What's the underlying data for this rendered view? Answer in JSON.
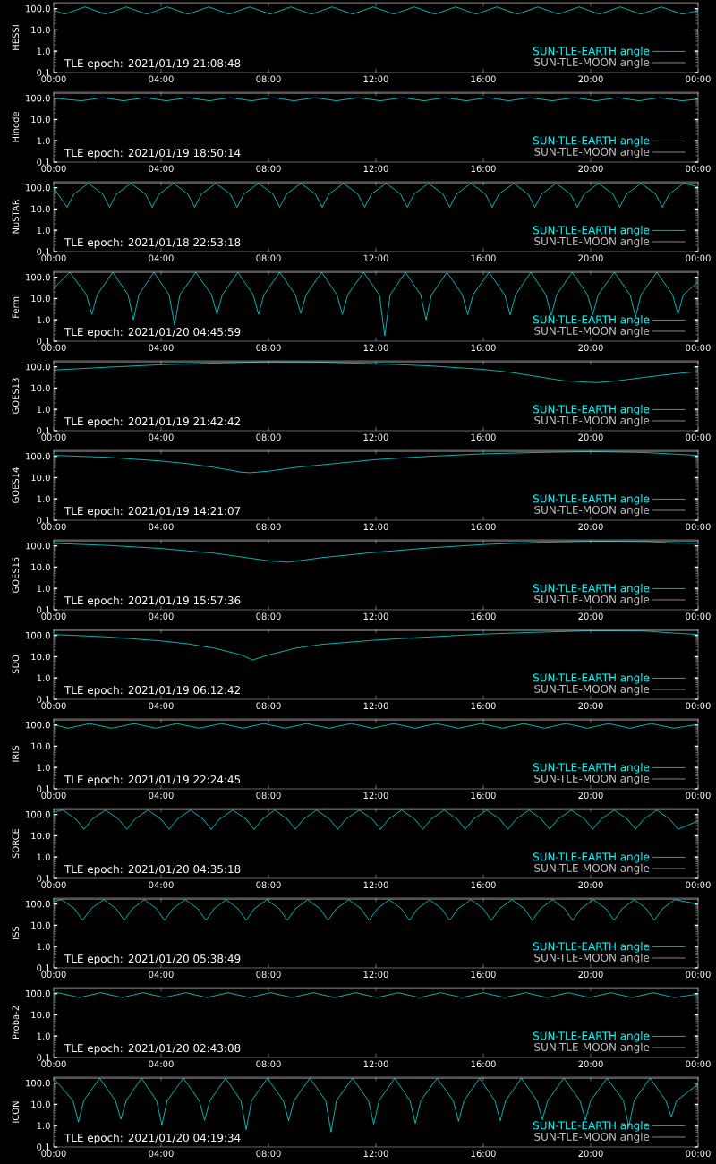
{
  "chart_data": [
    {
      "type": "line",
      "ylabel": "HESSI",
      "annotations": [
        "TLE epoch: 2021/01/19 21:08:48"
      ],
      "log": "y",
      "legend": "bottom right",
      "marker": "none",
      "line_style": "solid",
      "xlim": [
        0,
        24
      ],
      "ylim": [
        0.1,
        190
      ],
      "xticks": [
        {
          "value": 0,
          "label": "00:00"
        },
        {
          "value": 4,
          "label": "04:00"
        },
        {
          "value": 8,
          "label": "08:00"
        },
        {
          "value": 12,
          "label": "12:00"
        },
        {
          "value": 16,
          "label": "16:00"
        },
        {
          "value": 20,
          "label": "20:00"
        },
        {
          "value": 24,
          "label": "00:00"
        }
      ],
      "yticks": [
        {
          "value": 0.1,
          "label": "0.1"
        },
        {
          "value": 1,
          "label": "1.0"
        },
        {
          "value": 10,
          "label": "10.0"
        },
        {
          "value": 100,
          "label": "100.0"
        }
      ],
      "series": [
        {
          "name": "SUN-TLE-EARTH angle",
          "color": "#00ffff",
          "x": [
            0,
            0.4,
            1.17,
            1.93,
            2.7,
            3.47,
            4.23,
            5.0,
            5.77,
            6.53,
            7.3,
            8.07,
            8.83,
            9.6,
            10.37,
            11.13,
            11.9,
            12.67,
            13.43,
            14.2,
            14.97,
            15.73,
            16.5,
            17.27,
            18.03,
            18.8,
            19.57,
            20.33,
            21.1,
            21.87,
            22.63,
            23.4,
            24
          ],
          "values": [
            85,
            55,
            120,
            55,
            120,
            55,
            120,
            55,
            120,
            55,
            120,
            55,
            120,
            55,
            120,
            55,
            120,
            55,
            120,
            55,
            120,
            55,
            120,
            55,
            120,
            55,
            120,
            55,
            120,
            55,
            120,
            55,
            80
          ]
        },
        {
          "name": "SUN-TLE-MOON angle",
          "color": "#c0c0c0",
          "x": [
            0,
            24
          ],
          "values": [
            170,
            170
          ]
        }
      ]
    },
    {
      "type": "line",
      "ylabel": "Hinode",
      "annotations": [
        "TLE epoch: 2021/01/19 18:50:14"
      ],
      "log": "y",
      "legend": "bottom right",
      "marker": "none",
      "line_style": "solid",
      "xlim": [
        0,
        24
      ],
      "ylim": [
        0.1,
        190
      ],
      "xticks": [
        {
          "value": 0,
          "label": "00:00"
        },
        {
          "value": 4,
          "label": "04:00"
        },
        {
          "value": 8,
          "label": "08:00"
        },
        {
          "value": 12,
          "label": "12:00"
        },
        {
          "value": 16,
          "label": "16:00"
        },
        {
          "value": 20,
          "label": "20:00"
        },
        {
          "value": 24,
          "label": "00:00"
        }
      ],
      "yticks": [
        {
          "value": 0.1,
          "label": "0.1"
        },
        {
          "value": 1,
          "label": "1.0"
        },
        {
          "value": 10,
          "label": "10.0"
        },
        {
          "value": 100,
          "label": "100.0"
        }
      ],
      "series": [
        {
          "name": "SUN-TLE-EARTH angle",
          "color": "#00ffff",
          "x": [
            0,
            1.03,
            1.83,
            2.6,
            3.4,
            4.2,
            5.0,
            5.8,
            6.57,
            7.37,
            8.17,
            8.95,
            9.73,
            10.53,
            11.33,
            12.17,
            13.0,
            13.8,
            14.57,
            15.37,
            16.17,
            16.95,
            17.73,
            18.57,
            19.4,
            20.2,
            21.0,
            21.8,
            22.57,
            23.4,
            24
          ],
          "values": [
            100,
            75,
            105,
            75,
            105,
            75,
            105,
            75,
            105,
            75,
            105,
            75,
            105,
            75,
            105,
            75,
            105,
            75,
            105,
            75,
            105,
            75,
            105,
            75,
            105,
            75,
            105,
            75,
            105,
            75,
            90
          ]
        },
        {
          "name": "SUN-TLE-MOON angle",
          "color": "#c0c0c0",
          "x": [
            0,
            24
          ],
          "values": [
            170,
            170
          ]
        }
      ]
    },
    {
      "type": "line",
      "ylabel": "NuSTAR",
      "annotations": [
        "TLE epoch: 2021/01/18 22:53:18"
      ],
      "log": "y",
      "legend": "bottom right",
      "marker": "none",
      "line_style": "solid",
      "xlim": [
        0,
        24
      ],
      "ylim": [
        0.1,
        190
      ],
      "xticks": [
        {
          "value": 0,
          "label": "00:00"
        },
        {
          "value": 4,
          "label": "04:00"
        },
        {
          "value": 8,
          "label": "08:00"
        },
        {
          "value": 12,
          "label": "12:00"
        },
        {
          "value": 16,
          "label": "16:00"
        },
        {
          "value": 20,
          "label": "20:00"
        },
        {
          "value": 24,
          "label": "00:00"
        }
      ],
      "yticks": [
        {
          "value": 0.1,
          "label": "0.1"
        },
        {
          "value": 1,
          "label": "1.0"
        },
        {
          "value": 10,
          "label": "10.0"
        },
        {
          "value": 100,
          "label": "100.0"
        }
      ],
      "series": [
        {
          "name": "SUN-TLE-EARTH angle",
          "color": "#00ffff",
          "x": [
            0,
            0.5,
            0.75,
            1.29,
            1.83,
            2.08,
            2.33,
            2.88,
            3.42,
            3.67,
            3.92,
            4.46,
            5.0,
            5.25,
            5.5,
            6.04,
            6.58,
            6.83,
            7.08,
            7.63,
            8.17,
            8.42,
            8.67,
            9.21,
            9.75,
            10.0,
            10.25,
            10.79,
            11.33,
            11.58,
            11.83,
            12.38,
            12.92,
            13.17,
            13.42,
            13.96,
            14.5,
            14.75,
            15.0,
            15.54,
            16.08,
            16.33,
            16.58,
            17.13,
            17.67,
            17.92,
            18.17,
            18.71,
            19.25,
            19.5,
            19.75,
            20.29,
            20.83,
            21.08,
            21.33,
            21.88,
            22.42,
            22.67,
            22.92,
            23.46,
            24
          ],
          "values": [
            100,
            12,
            50,
            160,
            50,
            12,
            50,
            160,
            50,
            12,
            50,
            160,
            50,
            12,
            50,
            160,
            50,
            12,
            50,
            160,
            50,
            12,
            50,
            160,
            50,
            12,
            50,
            160,
            50,
            12,
            50,
            160,
            50,
            12,
            50,
            160,
            50,
            12,
            50,
            160,
            50,
            12,
            50,
            160,
            50,
            12,
            50,
            160,
            50,
            12,
            50,
            160,
            50,
            12,
            50,
            160,
            50,
            12,
            50,
            160,
            110
          ]
        },
        {
          "name": "SUN-TLE-MOON angle",
          "color": "#c0c0c0",
          "x": [
            0,
            24
          ],
          "values": [
            170,
            170
          ]
        }
      ]
    },
    {
      "type": "line",
      "ylabel": "Fermi",
      "annotations": [
        "TLE epoch: 2021/01/20 04:45:59"
      ],
      "log": "y",
      "legend": "bottom right",
      "marker": "none",
      "line_style": "solid",
      "xlim": [
        0,
        24
      ],
      "ylim": [
        0.1,
        190
      ],
      "xticks": [
        {
          "value": 0,
          "label": "00:00"
        },
        {
          "value": 4,
          "label": "04:00"
        },
        {
          "value": 8,
          "label": "08:00"
        },
        {
          "value": 12,
          "label": "12:00"
        },
        {
          "value": 16,
          "label": "16:00"
        },
        {
          "value": 20,
          "label": "20:00"
        },
        {
          "value": 24,
          "label": "00:00"
        }
      ],
      "yticks": [
        {
          "value": 0.1,
          "label": "0.1"
        },
        {
          "value": 1,
          "label": "1.0"
        },
        {
          "value": 10,
          "label": "10.0"
        },
        {
          "value": 100,
          "label": "100.0"
        }
      ],
      "series": [
        {
          "name": "SUN-TLE-EARTH angle",
          "color": "#00ffff",
          "x": [
            0,
            0.6,
            1.22,
            1.42,
            1.62,
            2.2,
            2.77,
            2.97,
            3.17,
            3.73,
            4.3,
            4.5,
            4.7,
            5.29,
            5.88,
            6.08,
            6.28,
            6.86,
            7.43,
            7.63,
            7.83,
            8.42,
            9.0,
            9.2,
            9.4,
            9.98,
            10.55,
            10.75,
            10.95,
            11.54,
            12.13,
            12.33,
            12.53,
            13.1,
            13.67,
            13.87,
            14.07,
            14.65,
            15.22,
            15.42,
            15.62,
            16.21,
            16.8,
            17.0,
            17.2,
            17.77,
            18.33,
            18.53,
            18.73,
            19.31,
            19.88,
            20.08,
            20.28,
            20.88,
            21.47,
            21.67,
            21.87,
            22.46,
            23.05,
            23.25,
            23.45,
            24
          ],
          "values": [
            30,
            170,
            15,
            1.8,
            15,
            170,
            15,
            1.0,
            15,
            170,
            15,
            0.55,
            15,
            170,
            15,
            1.8,
            15,
            170,
            15,
            1.8,
            15,
            170,
            15,
            2.0,
            15,
            170,
            15,
            1.8,
            15,
            170,
            15,
            0.18,
            15,
            170,
            15,
            1.0,
            15,
            170,
            15,
            1.8,
            15,
            170,
            15,
            1.7,
            15,
            170,
            15,
            1.6,
            15,
            170,
            15,
            1.8,
            15,
            170,
            15,
            1.3,
            15,
            170,
            15,
            1.8,
            15,
            60
          ]
        },
        {
          "name": "SUN-TLE-MOON angle",
          "color": "#c0c0c0",
          "x": [
            0,
            24
          ],
          "values": [
            170,
            170
          ]
        }
      ]
    },
    {
      "type": "line",
      "ylabel": "GOES13",
      "annotations": [
        "TLE epoch: 2021/01/19 21:42:42"
      ],
      "log": "y",
      "legend": "bottom right",
      "marker": "none",
      "line_style": "solid",
      "xlim": [
        0,
        24
      ],
      "ylim": [
        0.1,
        190
      ],
      "xticks": [
        {
          "value": 0,
          "label": "00:00"
        },
        {
          "value": 4,
          "label": "04:00"
        },
        {
          "value": 8,
          "label": "08:00"
        },
        {
          "value": 12,
          "label": "12:00"
        },
        {
          "value": 16,
          "label": "16:00"
        },
        {
          "value": 20,
          "label": "20:00"
        },
        {
          "value": 24,
          "label": "00:00"
        }
      ],
      "yticks": [
        {
          "value": 0.1,
          "label": "0.1"
        },
        {
          "value": 1,
          "label": "1.0"
        },
        {
          "value": 10,
          "label": "10.0"
        },
        {
          "value": 100,
          "label": "100.0"
        }
      ],
      "series": [
        {
          "name": "SUN-TLE-EARTH angle",
          "color": "#00ffff",
          "x": [
            0,
            2,
            4,
            6,
            8,
            10,
            12,
            14,
            16,
            17,
            18,
            19,
            20.2,
            21,
            22,
            23,
            24
          ],
          "values": [
            70,
            95,
            125,
            150,
            170,
            165,
            140,
            110,
            75,
            55,
            35,
            22,
            18,
            22,
            32,
            45,
            60
          ]
        },
        {
          "name": "SUN-TLE-MOON angle",
          "color": "#c0c0c0",
          "x": [
            0,
            24
          ],
          "values": [
            170,
            170
          ]
        }
      ]
    },
    {
      "type": "line",
      "ylabel": "GOES14",
      "annotations": [
        "TLE epoch: 2021/01/19 14:21:07"
      ],
      "log": "y",
      "legend": "bottom right",
      "marker": "none",
      "line_style": "solid",
      "xlim": [
        0,
        24
      ],
      "ylim": [
        0.1,
        190
      ],
      "xticks": [
        {
          "value": 0,
          "label": "00:00"
        },
        {
          "value": 4,
          "label": "04:00"
        },
        {
          "value": 8,
          "label": "08:00"
        },
        {
          "value": 12,
          "label": "12:00"
        },
        {
          "value": 16,
          "label": "16:00"
        },
        {
          "value": 20,
          "label": "20:00"
        },
        {
          "value": 24,
          "label": "00:00"
        }
      ],
      "yticks": [
        {
          "value": 0.1,
          "label": "0.1"
        },
        {
          "value": 1,
          "label": "1.0"
        },
        {
          "value": 10,
          "label": "10.0"
        },
        {
          "value": 100,
          "label": "100.0"
        }
      ],
      "series": [
        {
          "name": "SUN-TLE-EARTH angle",
          "color": "#00ffff",
          "x": [
            0,
            2,
            4,
            5,
            6,
            7,
            7.3,
            8,
            9,
            10,
            12,
            14,
            16,
            18,
            20,
            22,
            24
          ],
          "values": [
            110,
            90,
            60,
            45,
            30,
            18,
            17,
            20,
            30,
            40,
            70,
            100,
            130,
            150,
            165,
            150,
            110
          ]
        },
        {
          "name": "SUN-TLE-MOON angle",
          "color": "#c0c0c0",
          "x": [
            0,
            24
          ],
          "values": [
            170,
            170
          ]
        }
      ]
    },
    {
      "type": "line",
      "ylabel": "GOES15",
      "annotations": [
        "TLE epoch: 2021/01/19 15:57:36"
      ],
      "log": "y",
      "legend": "bottom right",
      "marker": "none",
      "line_style": "solid",
      "xlim": [
        0,
        24
      ],
      "ylim": [
        0.1,
        190
      ],
      "xticks": [
        {
          "value": 0,
          "label": "00:00"
        },
        {
          "value": 4,
          "label": "04:00"
        },
        {
          "value": 8,
          "label": "08:00"
        },
        {
          "value": 12,
          "label": "12:00"
        },
        {
          "value": 16,
          "label": "16:00"
        },
        {
          "value": 20,
          "label": "20:00"
        },
        {
          "value": 24,
          "label": "00:00"
        }
      ],
      "yticks": [
        {
          "value": 0.1,
          "label": "0.1"
        },
        {
          "value": 1,
          "label": "1.0"
        },
        {
          "value": 10,
          "label": "10.0"
        },
        {
          "value": 100,
          "label": "100.0"
        }
      ],
      "series": [
        {
          "name": "SUN-TLE-EARTH angle",
          "color": "#00ffff",
          "x": [
            0,
            2,
            4,
            6,
            7,
            8,
            8.7,
            10,
            12,
            14,
            16,
            18,
            20,
            22,
            23,
            24
          ],
          "values": [
            130,
            105,
            75,
            45,
            30,
            20,
            17,
            28,
            50,
            80,
            115,
            145,
            165,
            160,
            140,
            130
          ]
        },
        {
          "name": "SUN-TLE-MOON angle",
          "color": "#c0c0c0",
          "x": [
            0,
            24
          ],
          "values": [
            170,
            170
          ]
        }
      ]
    },
    {
      "type": "line",
      "ylabel": "SDO",
      "annotations": [
        "TLE epoch: 2021/01/19 06:12:42"
      ],
      "log": "y",
      "legend": "bottom right",
      "marker": "none",
      "line_style": "solid",
      "xlim": [
        0,
        24
      ],
      "ylim": [
        0.1,
        190
      ],
      "xticks": [
        {
          "value": 0,
          "label": "00:00"
        },
        {
          "value": 4,
          "label": "04:00"
        },
        {
          "value": 8,
          "label": "08:00"
        },
        {
          "value": 12,
          "label": "12:00"
        },
        {
          "value": 16,
          "label": "16:00"
        },
        {
          "value": 20,
          "label": "20:00"
        },
        {
          "value": 24,
          "label": "00:00"
        }
      ],
      "yticks": [
        {
          "value": 0.1,
          "label": "0.1"
        },
        {
          "value": 1,
          "label": "1.0"
        },
        {
          "value": 10,
          "label": "10.0"
        },
        {
          "value": 100,
          "label": "100.0"
        }
      ],
      "series": [
        {
          "name": "SUN-TLE-EARTH angle",
          "color": "#00ffff",
          "x": [
            0,
            2,
            4,
            5,
            6,
            7,
            7.4,
            8,
            9,
            10,
            12,
            14,
            16,
            18,
            20,
            22,
            23,
            24
          ],
          "values": [
            110,
            85,
            55,
            40,
            25,
            12,
            7,
            12,
            25,
            38,
            60,
            85,
            115,
            140,
            165,
            160,
            130,
            110
          ]
        },
        {
          "name": "SUN-TLE-MOON angle",
          "color": "#c0c0c0",
          "x": [
            0,
            24
          ],
          "values": [
            170,
            170
          ]
        }
      ]
    },
    {
      "type": "line",
      "ylabel": "IRIS",
      "annotations": [
        "TLE epoch: 2021/01/19 22:24:45"
      ],
      "log": "y",
      "legend": "bottom right",
      "marker": "none",
      "line_style": "solid",
      "xlim": [
        0,
        24
      ],
      "ylim": [
        0.1,
        190
      ],
      "xticks": [
        {
          "value": 0,
          "label": "00:00"
        },
        {
          "value": 4,
          "label": "04:00"
        },
        {
          "value": 8,
          "label": "08:00"
        },
        {
          "value": 12,
          "label": "12:00"
        },
        {
          "value": 16,
          "label": "16:00"
        },
        {
          "value": 20,
          "label": "20:00"
        },
        {
          "value": 24,
          "label": "00:00"
        }
      ],
      "yticks": [
        {
          "value": 0.1,
          "label": "0.1"
        },
        {
          "value": 1,
          "label": "1.0"
        },
        {
          "value": 10,
          "label": "10.0"
        },
        {
          "value": 100,
          "label": "100.0"
        }
      ],
      "series": [
        {
          "name": "SUN-TLE-EARTH angle",
          "color": "#00ffff",
          "x": [
            0,
            0.55,
            1.33,
            2.17,
            3.0,
            3.8,
            4.58,
            5.42,
            6.25,
            7.04,
            7.83,
            8.63,
            9.42,
            10.25,
            11.08,
            11.88,
            12.67,
            13.46,
            14.25,
            15.08,
            15.92,
            16.71,
            17.5,
            18.29,
            19.08,
            19.88,
            20.67,
            21.46,
            22.25,
            23.1,
            24
          ],
          "values": [
            100,
            70,
            115,
            70,
            115,
            70,
            115,
            70,
            115,
            70,
            115,
            70,
            115,
            70,
            115,
            70,
            115,
            70,
            115,
            70,
            115,
            70,
            115,
            70,
            115,
            70,
            115,
            70,
            115,
            70,
            105
          ]
        },
        {
          "name": "SUN-TLE-MOON angle",
          "color": "#c0c0c0",
          "x": [
            0,
            24
          ],
          "values": [
            170,
            170
          ]
        }
      ]
    },
    {
      "type": "line",
      "ylabel": "SORCE",
      "annotations": [
        "TLE epoch: 2021/01/20 04:35:18"
      ],
      "log": "y",
      "legend": "bottom right",
      "marker": "none",
      "line_style": "solid",
      "xlim": [
        0,
        24
      ],
      "ylim": [
        0.1,
        190
      ],
      "xticks": [
        {
          "value": 0,
          "label": "00:00"
        },
        {
          "value": 4,
          "label": "04:00"
        },
        {
          "value": 8,
          "label": "08:00"
        },
        {
          "value": 12,
          "label": "12:00"
        },
        {
          "value": 16,
          "label": "16:00"
        },
        {
          "value": 20,
          "label": "20:00"
        },
        {
          "value": 24,
          "label": "00:00"
        }
      ],
      "yticks": [
        {
          "value": 0.1,
          "label": "0.1"
        },
        {
          "value": 1,
          "label": "1.0"
        },
        {
          "value": 10,
          "label": "10.0"
        },
        {
          "value": 100,
          "label": "100.0"
        }
      ],
      "series": [
        {
          "name": "SUN-TLE-EARTH angle",
          "color": "#00ffff",
          "x": [
            0,
            0.35,
            0.83,
            1.13,
            1.43,
            1.93,
            2.42,
            2.72,
            3.02,
            3.51,
            4.0,
            4.3,
            4.6,
            5.09,
            5.57,
            5.87,
            6.17,
            6.67,
            7.17,
            7.47,
            7.77,
            8.24,
            8.7,
            9.0,
            9.3,
            9.79,
            10.28,
            10.58,
            10.88,
            11.38,
            11.87,
            12.17,
            12.47,
            12.96,
            13.45,
            13.75,
            14.05,
            14.54,
            15.03,
            15.33,
            15.63,
            16.13,
            16.62,
            16.92,
            17.22,
            17.7,
            18.17,
            18.47,
            18.77,
            19.28,
            19.78,
            20.08,
            20.38,
            20.88,
            21.37,
            21.67,
            21.97,
            22.46,
            22.95,
            23.25,
            24
          ],
          "values": [
            130,
            160,
            60,
            20,
            60,
            160,
            60,
            20,
            60,
            160,
            60,
            20,
            60,
            160,
            60,
            20,
            60,
            160,
            60,
            20,
            60,
            160,
            60,
            20,
            60,
            160,
            60,
            20,
            60,
            160,
            60,
            20,
            60,
            160,
            60,
            20,
            60,
            160,
            60,
            20,
            60,
            160,
            60,
            20,
            60,
            160,
            60,
            20,
            60,
            160,
            60,
            20,
            60,
            160,
            60,
            20,
            60,
            160,
            60,
            20,
            50
          ]
        },
        {
          "name": "SUN-TLE-MOON angle",
          "color": "#c0c0c0",
          "x": [
            0,
            24
          ],
          "values": [
            170,
            170
          ]
        }
      ]
    },
    {
      "type": "line",
      "ylabel": "ISS",
      "annotations": [
        "TLE epoch: 2021/01/20 05:38:49"
      ],
      "log": "y",
      "legend": "bottom right",
      "marker": "none",
      "line_style": "solid",
      "xlim": [
        0,
        24
      ],
      "ylim": [
        0.1,
        190
      ],
      "xticks": [
        {
          "value": 0,
          "label": "00:00"
        },
        {
          "value": 4,
          "label": "04:00"
        },
        {
          "value": 8,
          "label": "08:00"
        },
        {
          "value": 12,
          "label": "12:00"
        },
        {
          "value": 16,
          "label": "16:00"
        },
        {
          "value": 20,
          "label": "20:00"
        },
        {
          "value": 24,
          "label": "00:00"
        }
      ],
      "yticks": [
        {
          "value": 0.1,
          "label": "0.1"
        },
        {
          "value": 1,
          "label": "1.0"
        },
        {
          "value": 10,
          "label": "10.0"
        },
        {
          "value": 100,
          "label": "100.0"
        }
      ],
      "series": [
        {
          "name": "SUN-TLE-EARTH angle",
          "color": "#00ffff",
          "x": [
            0,
            0.3,
            0.78,
            1.08,
            1.38,
            1.86,
            2.33,
            2.63,
            2.93,
            3.38,
            3.83,
            4.13,
            4.43,
            4.9,
            5.37,
            5.67,
            5.97,
            6.42,
            6.87,
            7.17,
            7.47,
            7.94,
            8.4,
            8.7,
            9.0,
            9.46,
            9.92,
            10.22,
            10.52,
            10.99,
            11.45,
            11.75,
            12.05,
            12.5,
            12.95,
            13.25,
            13.55,
            14.0,
            14.45,
            14.75,
            15.05,
            15.53,
            16.0,
            16.3,
            16.6,
            17.07,
            17.53,
            17.83,
            18.13,
            18.58,
            19.03,
            19.33,
            19.63,
            20.1,
            20.57,
            20.87,
            21.17,
            21.62,
            22.07,
            22.37,
            22.67,
            23.13,
            24
          ],
          "values": [
            130,
            160,
            60,
            17,
            60,
            160,
            60,
            17,
            60,
            160,
            60,
            17,
            60,
            160,
            60,
            17,
            60,
            160,
            60,
            17,
            60,
            160,
            60,
            17,
            60,
            160,
            60,
            17,
            60,
            160,
            60,
            17,
            60,
            160,
            60,
            17,
            60,
            160,
            60,
            17,
            60,
            160,
            60,
            17,
            60,
            160,
            60,
            17,
            60,
            160,
            60,
            17,
            60,
            160,
            60,
            17,
            60,
            160,
            60,
            17,
            60,
            160,
            100
          ]
        },
        {
          "name": "SUN-TLE-MOON angle",
          "color": "#c0c0c0",
          "x": [
            0,
            24
          ],
          "values": [
            170,
            170
          ]
        }
      ]
    },
    {
      "type": "line",
      "ylabel": "Proba-2",
      "annotations": [
        "TLE epoch: 2021/01/20 02:43:08"
      ],
      "log": "y",
      "legend": "bottom right",
      "marker": "none",
      "line_style": "solid",
      "xlim": [
        0,
        24
      ],
      "ylim": [
        0.1,
        190
      ],
      "xticks": [
        {
          "value": 0,
          "label": "00:00"
        },
        {
          "value": 4,
          "label": "04:00"
        },
        {
          "value": 8,
          "label": "08:00"
        },
        {
          "value": 12,
          "label": "12:00"
        },
        {
          "value": 16,
          "label": "16:00"
        },
        {
          "value": 20,
          "label": "20:00"
        },
        {
          "value": 24,
          "label": "00:00"
        }
      ],
      "yticks": [
        {
          "value": 0.1,
          "label": "0.1"
        },
        {
          "value": 1,
          "label": "1.0"
        },
        {
          "value": 10,
          "label": "10.0"
        },
        {
          "value": 100,
          "label": "100.0"
        }
      ],
      "series": [
        {
          "name": "SUN-TLE-EARTH angle",
          "color": "#00ffff",
          "x": [
            0,
            0.15,
            0.96,
            1.75,
            2.54,
            3.33,
            4.13,
            4.92,
            5.71,
            6.5,
            7.29,
            8.08,
            8.88,
            9.67,
            10.46,
            11.25,
            12.04,
            12.83,
            13.63,
            14.42,
            15.21,
            16.0,
            16.79,
            17.58,
            18.38,
            19.17,
            19.96,
            20.75,
            21.54,
            22.33,
            23.12,
            24
          ],
          "values": [
            105,
            110,
            65,
            110,
            65,
            110,
            65,
            110,
            65,
            110,
            65,
            110,
            65,
            110,
            65,
            110,
            65,
            110,
            65,
            110,
            65,
            110,
            65,
            110,
            65,
            110,
            65,
            110,
            65,
            110,
            65,
            95
          ]
        },
        {
          "name": "SUN-TLE-MOON angle",
          "color": "#c0c0c0",
          "x": [
            0,
            24
          ],
          "values": [
            170,
            170
          ]
        }
      ]
    },
    {
      "type": "line",
      "ylabel": "ICON",
      "annotations": [
        "TLE epoch: 2021/01/20 04:19:34"
      ],
      "log": "y",
      "legend": "bottom right",
      "marker": "none",
      "line_style": "solid",
      "xlim": [
        0,
        24
      ],
      "ylim": [
        0.1,
        190
      ],
      "xticks": [
        {
          "value": 0,
          "label": "00:00"
        },
        {
          "value": 4,
          "label": "04:00"
        },
        {
          "value": 8,
          "label": "08:00"
        },
        {
          "value": 12,
          "label": "12:00"
        },
        {
          "value": 16,
          "label": "16:00"
        },
        {
          "value": 20,
          "label": "20:00"
        },
        {
          "value": 24,
          "label": "00:00"
        }
      ],
      "yticks": [
        {
          "value": 0.1,
          "label": "0.1"
        },
        {
          "value": 1,
          "label": "1.0"
        },
        {
          "value": 10,
          "label": "10.0"
        },
        {
          "value": 100,
          "label": "100.0"
        }
      ],
      "series": [
        {
          "name": "SUN-TLE-EARTH angle",
          "color": "#00ffff",
          "x": [
            0,
            0.72,
            0.92,
            1.12,
            1.71,
            2.3,
            2.5,
            2.7,
            3.27,
            3.83,
            4.03,
            4.23,
            4.83,
            5.42,
            5.62,
            5.82,
            6.4,
            6.97,
            7.17,
            7.37,
            7.96,
            8.55,
            8.75,
            8.95,
            9.54,
            10.13,
            10.33,
            10.53,
            11.13,
            11.72,
            11.92,
            12.12,
            12.7,
            13.27,
            13.47,
            13.67,
            14.28,
            14.88,
            15.08,
            15.28,
            15.86,
            16.43,
            16.63,
            16.83,
            17.42,
            18.0,
            18.2,
            18.4,
            19.0,
            19.6,
            19.8,
            20.0,
            20.61,
            21.22,
            21.42,
            21.62,
            22.21,
            22.8,
            23.0,
            23.2,
            24
          ],
          "values": [
            170,
            15,
            1.5,
            15,
            170,
            15,
            2.0,
            15,
            170,
            15,
            1.1,
            15,
            170,
            15,
            1.8,
            15,
            170,
            15,
            0.65,
            15,
            170,
            15,
            1.7,
            15,
            170,
            15,
            0.5,
            15,
            170,
            15,
            1.2,
            15,
            170,
            15,
            1.3,
            15,
            170,
            15,
            1.6,
            15,
            170,
            15,
            1.7,
            15,
            170,
            15,
            1.9,
            15,
            170,
            15,
            1.8,
            15,
            170,
            15,
            0.9,
            15,
            170,
            15,
            2.5,
            15,
            90
          ]
        },
        {
          "name": "SUN-TLE-MOON angle",
          "color": "#c0c0c0",
          "x": [
            0,
            24
          ],
          "values": [
            170,
            170
          ]
        }
      ]
    }
  ]
}
